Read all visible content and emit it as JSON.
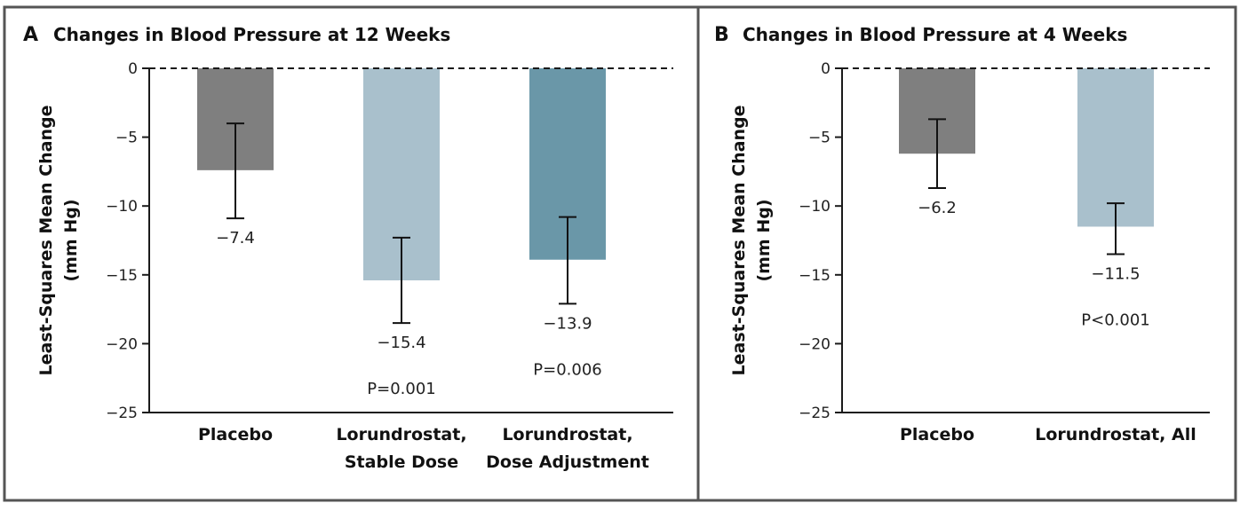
{
  "colors": {
    "frame": "#555555",
    "axis": "#1a1a1a",
    "placebo": "#7f7f7f",
    "lorundrostat_light": "#a9c0cc",
    "lorundrostat_dark": "#6a97a8",
    "error_bar": "#111111"
  },
  "chart_data": [
    {
      "panel": "A",
      "type": "bar",
      "title": "Changes in Blood Pressure at 12 Weeks",
      "ylabel": [
        "Least-Squares Mean Change",
        "(mm Hg)"
      ],
      "ylim": [
        -25,
        0
      ],
      "yticks": [
        0,
        -5,
        -10,
        -15,
        -20,
        -25
      ],
      "ytick_labels": [
        "0",
        "−5",
        "−10",
        "−15",
        "−20",
        "−25"
      ],
      "reference_line": 0,
      "categories": [
        [
          "Placebo"
        ],
        [
          "Lorundrostat,",
          "Stable Dose"
        ],
        [
          "Lorundrostat,",
          "Dose Adjustment"
        ]
      ],
      "values": [
        -7.4,
        -15.4,
        -13.9
      ],
      "error_low": [
        -10.9,
        -18.5,
        -17.1
      ],
      "error_high": [
        -4.0,
        -12.3,
        -10.8
      ],
      "value_labels": [
        "−7.4",
        "−15.4",
        "−13.9"
      ],
      "p_values": [
        "",
        "P=0.001",
        "P=0.006"
      ],
      "bar_colors": [
        "placebo",
        "lorundrostat_light",
        "lorundrostat_dark"
      ]
    },
    {
      "panel": "B",
      "type": "bar",
      "title": "Changes in Blood Pressure at 4 Weeks",
      "ylabel": [
        "Least-Squares Mean Change",
        "(mm Hg)"
      ],
      "ylim": [
        -25,
        0
      ],
      "yticks": [
        0,
        -5,
        -10,
        -15,
        -20,
        -25
      ],
      "ytick_labels": [
        "0",
        "−5",
        "−10",
        "−15",
        "−20",
        "−25"
      ],
      "reference_line": 0,
      "categories": [
        [
          "Placebo"
        ],
        [
          "Lorundrostat, All"
        ]
      ],
      "values": [
        -6.2,
        -11.5
      ],
      "error_low": [
        -8.7,
        -13.5
      ],
      "error_high": [
        -3.7,
        -9.8
      ],
      "value_labels": [
        "−6.2",
        "−11.5"
      ],
      "p_values": [
        "",
        "P<0.001"
      ],
      "bar_colors": [
        "placebo",
        "lorundrostat_light"
      ]
    }
  ]
}
